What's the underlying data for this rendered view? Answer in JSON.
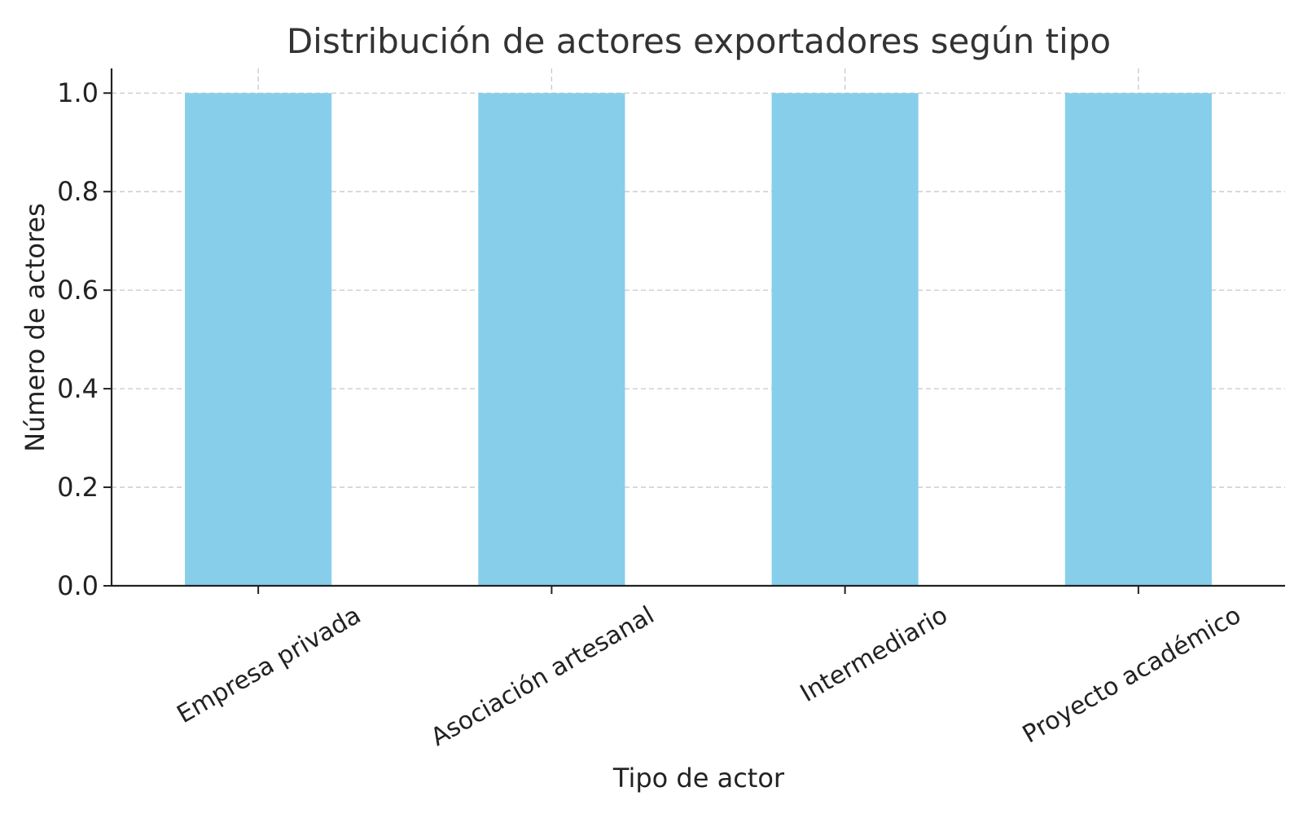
{
  "chart_data": {
    "type": "bar",
    "title": "Distribución de actores exportadores según tipo",
    "xlabel": "Tipo de actor",
    "ylabel": "Número de actores",
    "categories": [
      "Empresa privada",
      "Asociación artesanal",
      "Intermediario",
      "Proyecto académico"
    ],
    "values": [
      1,
      1,
      1,
      1
    ],
    "ylim": [
      0,
      1.05
    ],
    "yticks": [
      "0.0",
      "0.2",
      "0.4",
      "0.6",
      "0.8",
      "1.0"
    ],
    "grid": true,
    "bar_color": "#87CEEB",
    "axis_color": "#222222",
    "grid_color": "#c8c8c8",
    "text_color": "#222222",
    "title_color": "#333333"
  }
}
